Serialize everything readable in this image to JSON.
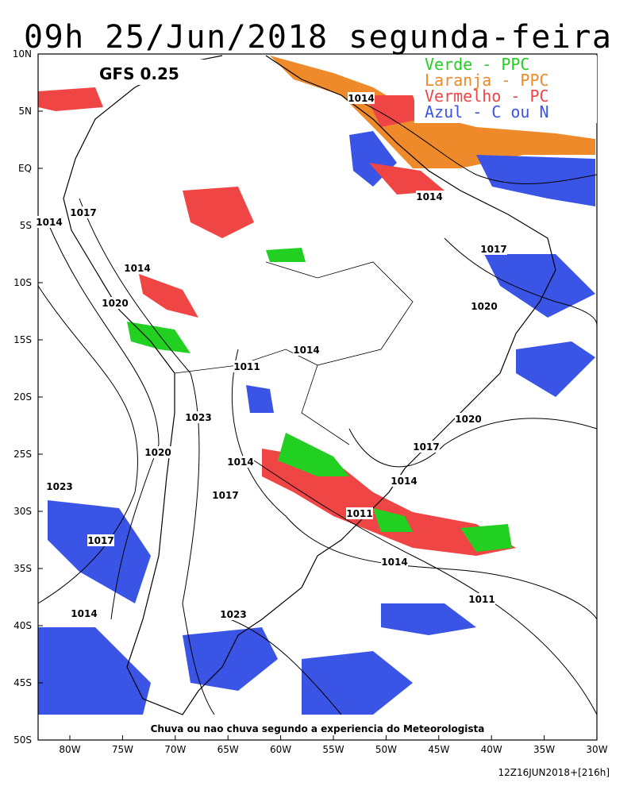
{
  "header": {
    "title": "09h 25/Jun/2018 segunda-feira",
    "model": "GFS 0.25"
  },
  "legend": [
    "Verde - PPC",
    "Laranja - PPC",
    "Vermelho - PC",
    "Azul - C ou N"
  ],
  "lat_labels": [
    "10N",
    "5N",
    "EQ",
    "5S",
    "10S",
    "15S",
    "20S",
    "25S",
    "30S",
    "35S",
    "40S",
    "45S",
    "50S"
  ],
  "lon_labels": [
    "80W",
    "75W",
    "70W",
    "65W",
    "60W",
    "55W",
    "50W",
    "45W",
    "40W",
    "35W",
    "30W"
  ],
  "isobar_labels": [
    1014,
    1014,
    1014,
    1017,
    1017,
    1014,
    1020,
    1020,
    1014,
    1011,
    1023,
    1020,
    1017,
    1020,
    1014,
    1014,
    1023,
    1017,
    1011,
    1017,
    1014,
    1011,
    1014,
    1023
  ],
  "caption": "Chuva ou nao chuva segundo a experiencia do Meteorologista",
  "footer": "12Z16JUN2018+[216h]"
}
